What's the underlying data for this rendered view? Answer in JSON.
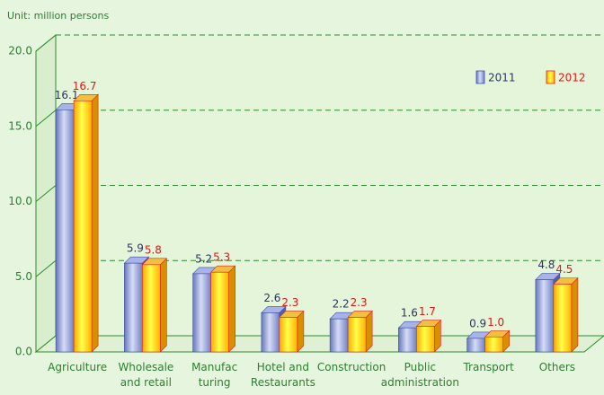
{
  "chart_data": {
    "type": "bar",
    "subtitle": "Unit: million persons",
    "categories": [
      "Agriculture",
      "Wholesale\nand retail",
      "Manufac\nturing",
      "Hotel and\nRestaurants",
      "Construction",
      "Public\nadministration",
      "Transport",
      "Others"
    ],
    "series": [
      {
        "name": "2011",
        "color": "#8a98d8",
        "values": [
          16.1,
          5.9,
          5.2,
          2.6,
          2.2,
          1.6,
          0.9,
          4.8
        ],
        "value_labels": [
          "16.1",
          "5.9",
          "5.2",
          "2.6",
          "2.2",
          "1.6",
          "0.9",
          "4.8"
        ]
      },
      {
        "name": "2012",
        "color": "#ffd000",
        "values": [
          16.7,
          5.8,
          5.3,
          2.3,
          2.3,
          1.7,
          1.0,
          4.5
        ],
        "value_labels": [
          "16.7",
          "5.8",
          "5.3",
          "2.3",
          "2.3",
          "1.7",
          "1.0",
          "4.5"
        ]
      }
    ],
    "ylim": [
      0,
      20
    ],
    "yticks": [
      {
        "value": 0,
        "label": "0.0"
      },
      {
        "value": 5,
        "label": "5.0"
      },
      {
        "value": 10,
        "label": "10.0"
      },
      {
        "value": 15,
        "label": "15.0"
      },
      {
        "value": 20,
        "label": "20.0"
      }
    ],
    "grid": true,
    "legend": "top-right"
  }
}
